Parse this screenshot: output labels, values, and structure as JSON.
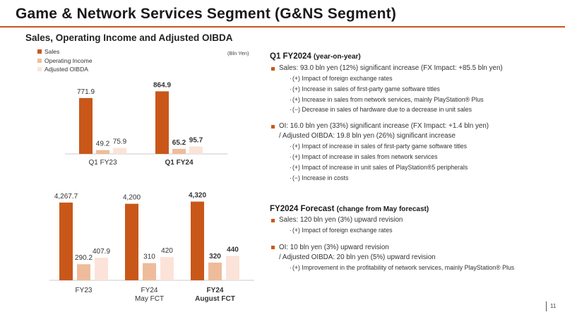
{
  "header": {
    "title": "Game & Network Services Segment (G&NS Segment)",
    "subtitle": "Sales, Operating Income and Adjusted OIBDA"
  },
  "colors": {
    "accent": "#c9571a",
    "sales": "#c9571a",
    "operating_income": "#eebc9a",
    "adjusted_oibda": "#fbe3d9"
  },
  "legend": {
    "items": [
      "Sales",
      "Operating Income",
      "Adjusted OIBDA"
    ],
    "unit": "(Bln Yen)"
  },
  "chart_data": [
    {
      "type": "bar",
      "categories": [
        "Q1 FY23",
        "Q1 FY24"
      ],
      "series": [
        {
          "name": "Sales",
          "values": [
            771.9,
            864.9
          ],
          "labels": [
            "771.9",
            "864.9"
          ]
        },
        {
          "name": "Operating Income",
          "values": [
            49.2,
            65.2
          ],
          "labels": [
            "49.2",
            "65.2"
          ]
        },
        {
          "name": "Adjusted OIBDA",
          "values": [
            75.9,
            95.7
          ],
          "labels": [
            "75.9",
            "95.7"
          ]
        }
      ],
      "bold_categories": [
        false,
        true
      ]
    },
    {
      "type": "bar",
      "categories": [
        [
          "FY23"
        ],
        [
          "FY24",
          "May FCT"
        ],
        [
          "FY24",
          "August FCT"
        ]
      ],
      "series": [
        {
          "name": "Sales",
          "values": [
            4267.7,
            4200,
            4320
          ],
          "labels": [
            "4,267.7",
            "4,200",
            "4,320"
          ]
        },
        {
          "name": "Operating Income",
          "values": [
            290.2,
            310,
            320
          ],
          "labels": [
            "290.2",
            "310",
            "320"
          ]
        },
        {
          "name": "Adjusted OIBDA",
          "values": [
            407.9,
            420,
            440
          ],
          "labels": [
            "407.9",
            "420",
            "440"
          ]
        }
      ],
      "bold_categories": [
        false,
        false,
        true
      ]
    }
  ],
  "q1_section": {
    "heading": "Q1 FY2024",
    "heading_sub": "(year-on-year)",
    "sales_line": "Sales: 93.0 bln yen (12%) significant increase (FX Impact: +85.5 bln yen)",
    "sales_items": [
      "(+) Impact of foreign exchange rates",
      "(+) Increase in sales of first-party game software titles",
      "(+) Increase in sales from network services, mainly PlayStation® Plus",
      "(−) Decrease in sales of hardware due to a decrease in unit sales"
    ],
    "oi_line": "OI:  16.0 bln yen (33%) significant increase  (FX Impact: +1.4 bln yen)",
    "oi_cont": "/ Adjusted OIBDA: 19.8 bln yen (26%) significant increase",
    "oi_items": [
      "(+) Impact of increase in sales of first-party game software titles",
      "(+) Impact of increase in sales from network services",
      "(+) Impact of increase in unit sales of PlayStation®5 peripherals",
      "(−) Increase in costs"
    ]
  },
  "forecast_section": {
    "heading": "FY2024 Forecast",
    "heading_sub": "(change from May forecast)",
    "sales_line": "Sales: 120 bln yen (3%) upward revision",
    "sales_items": [
      "(+) Impact of foreign exchange rates"
    ],
    "oi_line": "OI: 10 bln yen  (3%) upward revision",
    "oi_cont": "/ Adjusted OIBDA: 20 bln yen (5%) upward revision",
    "oi_items": [
      "(+) Improvement in the profitability of network services, mainly PlayStation® Plus"
    ]
  },
  "page_number": "11"
}
